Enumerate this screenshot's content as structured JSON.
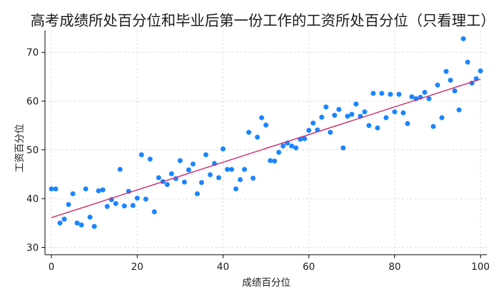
{
  "chart_data": {
    "type": "scatter",
    "title": "高考成绩所处百分位和毕业后第一份工作的工资所处百分位（只看理工）",
    "xlabel": "成绩百分位",
    "ylabel": "工资百分位",
    "xlim": [
      -1.5,
      101.5
    ],
    "ylim": [
      28.5,
      74.5
    ],
    "xticks": [
      0,
      20,
      40,
      60,
      80,
      100
    ],
    "yticks": [
      30,
      40,
      50,
      60,
      70
    ],
    "grid": true,
    "legend": "none",
    "colors": {
      "points": "#1a85ff",
      "fit_line": "#cc2f6f",
      "grid": "#dcdcdc"
    },
    "series": [
      {
        "type": "scatter",
        "x": [
          0,
          1,
          2,
          3,
          4,
          5,
          6,
          7,
          8,
          9,
          10,
          11,
          12,
          13,
          14,
          15,
          16,
          17,
          18,
          19,
          20,
          21,
          22,
          23,
          24,
          25,
          26,
          27,
          28,
          29,
          30,
          31,
          32,
          33,
          34,
          35,
          36,
          37,
          38,
          39,
          40,
          41,
          42,
          43,
          44,
          45,
          46,
          47,
          48,
          49,
          50,
          51,
          52,
          53,
          54,
          55,
          56,
          57,
          58,
          59,
          60,
          61,
          62,
          63,
          64,
          65,
          66,
          67,
          68,
          69,
          70,
          71,
          72,
          73,
          74,
          75,
          76,
          77,
          78,
          79,
          80,
          81,
          82,
          83,
          84,
          85,
          86,
          87,
          88,
          89,
          90,
          91,
          92,
          93,
          94,
          95,
          96,
          97,
          98,
          99,
          100
        ],
        "y": [
          42.0,
          42.0,
          35.0,
          35.8,
          38.8,
          41.0,
          35.0,
          34.6,
          42.0,
          36.2,
          34.3,
          41.6,
          41.8,
          38.4,
          39.8,
          39.0,
          46.0,
          38.5,
          41.5,
          38.6,
          40.1,
          49.0,
          39.9,
          48.1,
          37.3,
          44.3,
          43.5,
          42.9,
          45.1,
          44.1,
          47.8,
          43.4,
          45.9,
          47.1,
          41.0,
          43.3,
          49.0,
          44.9,
          47.2,
          44.3,
          50.2,
          46.0,
          46.0,
          42.0,
          43.9,
          46.0,
          53.6,
          44.2,
          52.6,
          56.6,
          55.1,
          47.8,
          47.7,
          49.5,
          50.8,
          51.4,
          50.8,
          50.4,
          52.2,
          52.3,
          54.0,
          55.5,
          54.1,
          56.7,
          58.8,
          53.6,
          57.1,
          58.3,
          50.4,
          56.9,
          57.3,
          59.4,
          56.9,
          57.8,
          55.0,
          61.6,
          54.5,
          61.6,
          56.6,
          61.4,
          57.8,
          61.4,
          57.6,
          55.4,
          60.9,
          60.5,
          60.8,
          61.8,
          60.5,
          54.8,
          63.3,
          56.6,
          66.1,
          64.3,
          62.1,
          58.2,
          72.8,
          68.0,
          63.7,
          64.6,
          66.2
        ]
      },
      {
        "type": "line",
        "name": "",
        "x": [
          0,
          100
        ],
        "y": [
          36.1,
          64.5
        ]
      }
    ]
  }
}
